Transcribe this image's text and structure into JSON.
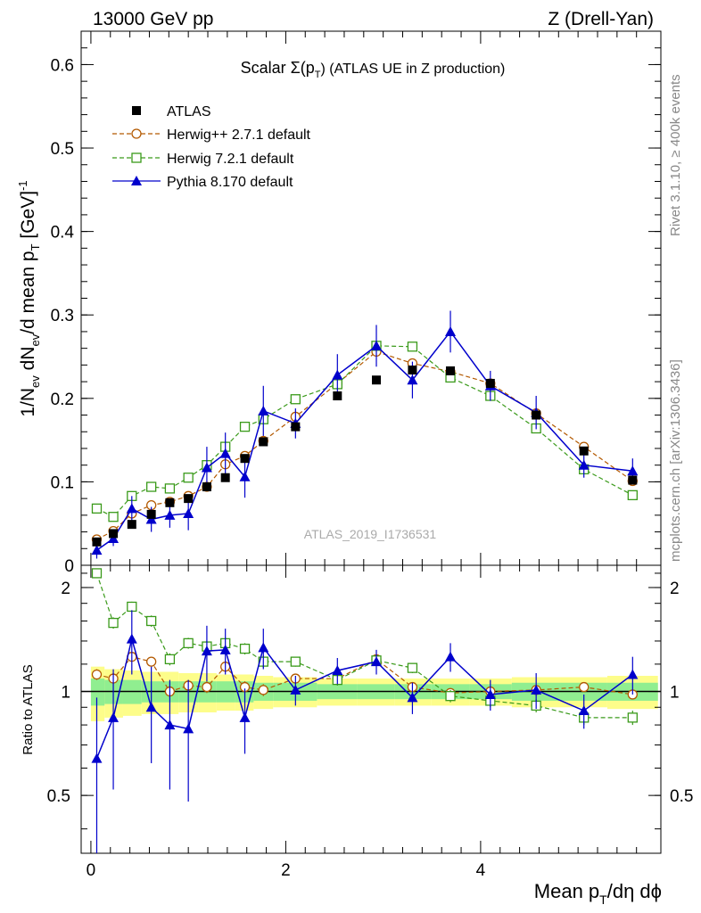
{
  "header": {
    "left": "13000 GeV pp",
    "right": "Z (Drell-Yan)"
  },
  "side_text": {
    "top": "Rivet 3.1.10, ≥ 400k events",
    "bottom": "mcplots.cern.ch [arXiv:1306.3436]"
  },
  "chart_data": [
    {
      "type": "scatter",
      "title": "Scalar Σ(pₜ) (ATLAS UE in Z production)",
      "title_main": "Scalar Σ(p",
      "title_sub": "T",
      "title_tail": ") (ATLAS UE in Z production)",
      "watermark": "ATLAS_2019_I1736531",
      "ylabel": "1/Nₑᵥ dNₑᵥ/d mean pₜ [GeV]⁻¹",
      "ylabel_parts": {
        "a": "1/N",
        "b": "ev",
        "c": " dN",
        "d": "ev",
        "e": "/d mean p",
        "f": "T",
        "g": " [GeV]",
        "h": "-1"
      },
      "xlim": [
        -0.1,
        5.85
      ],
      "ylim": [
        0,
        0.64
      ],
      "yticks": [
        0,
        0.1,
        0.2,
        0.3,
        0.4,
        0.5,
        0.6
      ],
      "ytick_labels": [
        "0",
        "0.1",
        "0.2",
        "0.3",
        "0.4",
        "0.5",
        "0.6"
      ],
      "x": [
        0.06,
        0.23,
        0.42,
        0.62,
        0.81,
        1.0,
        1.19,
        1.38,
        1.58,
        1.77,
        2.1,
        2.53,
        2.93,
        3.3,
        3.69,
        4.1,
        4.57,
        5.06,
        5.56
      ],
      "series": [
        {
          "name": "ATLAS",
          "style": "data",
          "color": "#000000",
          "values": [
            0.028,
            0.038,
            0.049,
            0.061,
            0.075,
            0.08,
            0.094,
            0.105,
            0.128,
            0.148,
            0.166,
            0.203,
            0.222,
            0.234,
            0.233,
            0.218,
            0.18,
            0.137,
            0.102
          ],
          "errors": []
        },
        {
          "name": "Herwig++ 2.7.1 default",
          "style": "circle",
          "color": "#b35900",
          "values": [
            0.031,
            0.041,
            0.062,
            0.072,
            0.076,
            0.083,
            0.094,
            0.121,
            0.131,
            0.149,
            0.178,
            0.218,
            0.256,
            0.242,
            0.232,
            0.218,
            0.182,
            0.142,
            0.101
          ],
          "errors": []
        },
        {
          "name": "Herwig 7.2.1 default",
          "style": "square",
          "color": "#3a9a1a",
          "values": [
            0.068,
            0.058,
            0.083,
            0.094,
            0.092,
            0.105,
            0.12,
            0.142,
            0.166,
            0.175,
            0.199,
            0.217,
            0.263,
            0.262,
            0.225,
            0.203,
            0.164,
            0.115,
            0.084
          ],
          "errors": []
        },
        {
          "name": "Pythia 8.170 default",
          "style": "triangle",
          "color": "#0000cc",
          "values": [
            0.018,
            0.032,
            0.068,
            0.055,
            0.06,
            0.062,
            0.117,
            0.134,
            0.106,
            0.185,
            0.17,
            0.228,
            0.263,
            0.222,
            0.28,
            0.215,
            0.183,
            0.12,
            0.113
          ],
          "errors": [
            0.01,
            0.009,
            0.015,
            0.015,
            0.015,
            0.02,
            0.025,
            0.025,
            0.025,
            0.03,
            0.018,
            0.025,
            0.025,
            0.022,
            0.025,
            0.018,
            0.02,
            0.015,
            0.015
          ]
        }
      ]
    },
    {
      "type": "scatter",
      "title": "Ratio panel",
      "ylabel": "Ratio to ATLAS",
      "xlabel": "Mean pₜ/dη dϕ",
      "xlabel_parts": {
        "a": "Mean p",
        "b": "T",
        "c": "/dη dϕ"
      },
      "xlim": [
        -0.1,
        5.85
      ],
      "ylim": [
        0.34,
        2.32
      ],
      "yticks": [
        0.5,
        1,
        2
      ],
      "ytick_labels": [
        "0.5",
        "1",
        "2"
      ],
      "xticks": [
        0,
        2,
        4
      ],
      "xtick_labels": [
        "0",
        "2",
        "4"
      ],
      "x": [
        0.06,
        0.23,
        0.42,
        0.62,
        0.81,
        1.0,
        1.19,
        1.38,
        1.58,
        1.77,
        2.1,
        2.53,
        2.93,
        3.3,
        3.69,
        4.1,
        4.57,
        5.06,
        5.56
      ],
      "band_edges": [
        0.0,
        0.14,
        0.33,
        0.52,
        0.71,
        0.9,
        1.1,
        1.29,
        1.48,
        1.67,
        1.87,
        2.32,
        2.73,
        3.12,
        3.49,
        3.89,
        4.32,
        4.82,
        5.3,
        5.82
      ],
      "band_inner": [
        0.09,
        0.08,
        0.08,
        0.07,
        0.07,
        0.07,
        0.07,
        0.07,
        0.07,
        0.06,
        0.06,
        0.05,
        0.05,
        0.05,
        0.05,
        0.05,
        0.06,
        0.06,
        0.06
      ],
      "band_outer": [
        0.18,
        0.16,
        0.15,
        0.14,
        0.14,
        0.13,
        0.13,
        0.12,
        0.12,
        0.11,
        0.1,
        0.09,
        0.09,
        0.09,
        0.09,
        0.09,
        0.1,
        0.1,
        0.11
      ],
      "series": [
        {
          "name": "Herwig++ 2.7.1 default",
          "style": "circle",
          "color": "#b35900",
          "values": [
            1.12,
            1.09,
            1.26,
            1.22,
            1.0,
            1.04,
            1.03,
            1.18,
            1.03,
            1.01,
            1.09,
            1.09,
            1.24,
            1.03,
            0.99,
            1.0,
            1.01,
            1.03,
            0.98
          ],
          "errors": [
            0.04,
            0.04,
            0.04,
            0.04,
            0.04,
            0.04,
            0.04,
            0.04,
            0.04,
            0.04,
            0.03,
            0.03,
            0.03,
            0.03,
            0.03,
            0.03,
            0.03,
            0.03,
            0.03
          ]
        },
        {
          "name": "Herwig 7.2.1 default",
          "style": "square",
          "color": "#3a9a1a",
          "values": [
            2.2,
            1.58,
            1.76,
            1.6,
            1.24,
            1.38,
            1.35,
            1.38,
            1.33,
            1.22,
            1.22,
            1.08,
            1.23,
            1.17,
            0.97,
            0.94,
            0.91,
            0.84,
            0.84
          ],
          "errors": [
            0.06,
            0.06,
            0.06,
            0.06,
            0.05,
            0.05,
            0.05,
            0.05,
            0.05,
            0.05,
            0.04,
            0.04,
            0.04,
            0.04,
            0.04,
            0.04,
            0.04,
            0.04,
            0.04
          ]
        },
        {
          "name": "Pythia 8.170 default",
          "style": "triangle",
          "color": "#0000cc",
          "values": [
            0.64,
            0.84,
            1.42,
            0.9,
            0.8,
            0.78,
            1.31,
            1.32,
            0.84,
            1.34,
            1.01,
            1.15,
            1.22,
            0.96,
            1.26,
            0.98,
            1.01,
            0.88,
            1.12
          ],
          "errors": [
            0.32,
            0.32,
            0.3,
            0.28,
            0.28,
            0.3,
            0.24,
            0.2,
            0.18,
            0.18,
            0.1,
            0.1,
            0.1,
            0.1,
            0.12,
            0.1,
            0.12,
            0.1,
            0.14
          ]
        }
      ]
    }
  ]
}
